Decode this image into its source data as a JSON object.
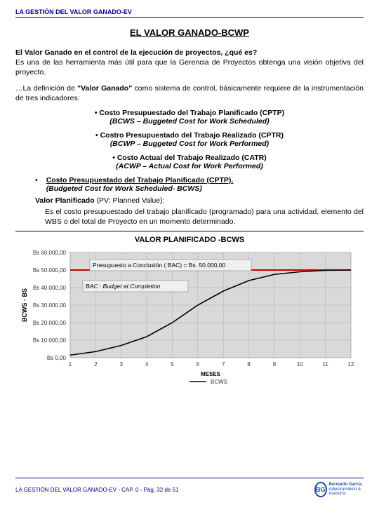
{
  "header": "LA GESTIÓN DEL VALOR GANADO-EV",
  "title": "EL VALOR GANADO-BCWP",
  "p1_bold": "El Valor Ganado en el control de la ejecución de proyectos, ¿qué es?",
  "p1_rest": "Es una de las herramienta más útil para que la Gerencia de Proyectos obtenga una visión objetiva del proyecto.",
  "p2_a": "…La definición de ",
  "p2_b": "\"Valor Ganado\"",
  "p2_c": " como sistema de control, básicamente requiere de la instrumentación de tres indicadores:",
  "bul1_a": "• Costo Presupuestado del Trabajo Planificado (CPTP)",
  "bul1_b": "(BCWS – Buggeted Cost for Work Scheduled)",
  "bul2_a": "• Costro Presupuestado del Trabajo Realizado (CPTR)",
  "bul2_b": "(BCWP – Buggeted Cost for Work Performed)",
  "bul3_a": "• Costo Actual del Trabajo Realizado (CATR)",
  "bul3_b": "(ACWP – Actual Cost for Work Performed)",
  "sec_dot": "•",
  "sec_line1": "Costo Presupuestado del Trabajo Planificado (CPTP).",
  "sec_line2": "(Budgeted Cost for Work Scheduled- BCWS)",
  "pv_label": "Valor Planificado",
  "pv_paren": " (PV: Planned Value):",
  "pv_desc": "Es el costo presupuestado del trabajo planificado (programado) para una actividad, elemento del WBS o del total de Proyecto en un momento determinado.",
  "chart": {
    "title": "VALOR PLANIFICADO -BCWS",
    "x_label": "MESES",
    "y_label": "BCWS - BS",
    "x_ticks": [
      1,
      2,
      3,
      4,
      5,
      6,
      7,
      8,
      9,
      10,
      11,
      12
    ],
    "y_ticks": [
      {
        "v": 0,
        "label": "Bs 0,00"
      },
      {
        "v": 10000,
        "label": "Bs 10.000,00"
      },
      {
        "v": 20000,
        "label": "Bs 20.000,00"
      },
      {
        "v": 30000,
        "label": "Bs 30.000,00"
      },
      {
        "v": 40000,
        "label": "Bs 40.000,00"
      },
      {
        "v": 50000,
        "label": "Bs 50.000,00"
      },
      {
        "v": 60000,
        "label": "Bs 60.000,00"
      }
    ],
    "y_max": 60000,
    "series_name": "BCWS",
    "data": [
      {
        "x": 1,
        "y": 1500
      },
      {
        "x": 2,
        "y": 3500
      },
      {
        "x": 3,
        "y": 7000
      },
      {
        "x": 4,
        "y": 12000
      },
      {
        "x": 5,
        "y": 20000
      },
      {
        "x": 6,
        "y": 30000
      },
      {
        "x": 7,
        "y": 38000
      },
      {
        "x": 8,
        "y": 44000
      },
      {
        "x": 9,
        "y": 47500
      },
      {
        "x": 10,
        "y": 49000
      },
      {
        "x": 11,
        "y": 49800
      },
      {
        "x": 12,
        "y": 50000
      }
    ],
    "plot_bg": "#d9d9d9",
    "grid_color": "#b0b0b0",
    "line_color": "#000000",
    "bac_line_color": "#cc0000",
    "bac_value": 50000,
    "callout1": "Presupuesto a Conclusión ( BAC) = Bs. 50.000,00",
    "callout2": "BAC : Budget at Completion"
  },
  "footer": "LA GESTIÓN DEL VALOR GANADO-EV - CAP. 0 - Pág. 32 de 51",
  "logo_initials": "BG",
  "logo_name": "Bernardo García",
  "logo_sub": "Adiestramiento & Asesoría"
}
